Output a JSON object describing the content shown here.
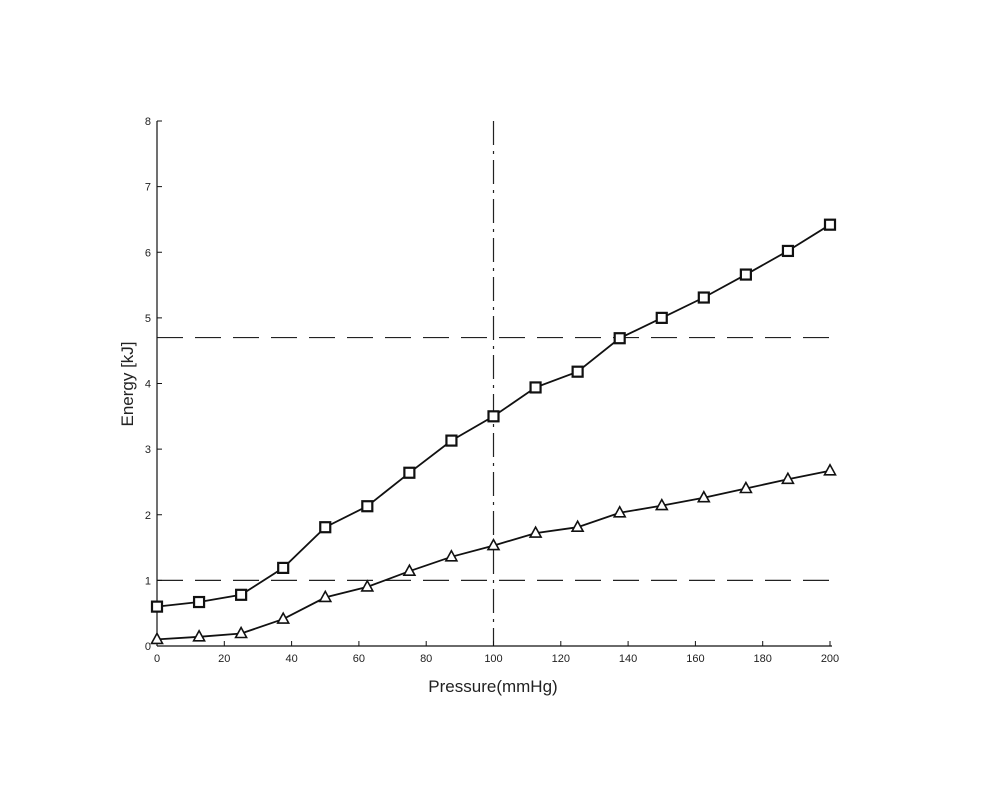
{
  "chart_data": {
    "type": "line",
    "xlabel": "Pressure(mmHg)",
    "ylabel": "Energy [kJ]",
    "xlim": [
      0,
      200
    ],
    "ylim": [
      0,
      8
    ],
    "xticks": [
      0,
      20,
      40,
      60,
      80,
      100,
      120,
      140,
      160,
      180,
      200
    ],
    "yticks": [
      0,
      1,
      2,
      3,
      4,
      5,
      6,
      7,
      8
    ],
    "grid": false,
    "legend": "none",
    "series": [
      {
        "marker": "square",
        "color": "#111111",
        "x": [
          0,
          12.5,
          25,
          37.5,
          50,
          62.5,
          75,
          87.5,
          100,
          112.5,
          125,
          137.5,
          150,
          162.5,
          175,
          187.5,
          200
        ],
        "y": [
          0.6,
          0.67,
          0.78,
          1.19,
          1.81,
          2.13,
          2.64,
          3.13,
          3.5,
          3.94,
          4.18,
          4.69,
          5.0,
          5.31,
          5.66,
          6.02,
          6.42
        ]
      },
      {
        "marker": "triangle",
        "color": "#111111",
        "x": [
          0,
          12.5,
          25,
          37.5,
          50,
          62.5,
          75,
          87.5,
          100,
          112.5,
          125,
          137.5,
          150,
          162.5,
          175,
          187.5,
          200
        ],
        "y": [
          0.1,
          0.14,
          0.19,
          0.41,
          0.74,
          0.9,
          1.14,
          1.36,
          1.53,
          1.72,
          1.81,
          2.03,
          2.14,
          2.26,
          2.4,
          2.54,
          2.67
        ]
      }
    ],
    "reference_lines": [
      {
        "orientation": "horizontal",
        "value": 4.7,
        "style": "long-dash"
      },
      {
        "orientation": "horizontal",
        "value": 1.0,
        "style": "long-dash"
      },
      {
        "orientation": "vertical",
        "value": 100,
        "style": "dash-dot"
      }
    ]
  }
}
